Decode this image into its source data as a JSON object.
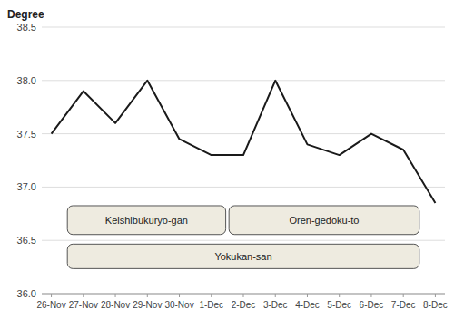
{
  "chart_data": {
    "type": "line",
    "ylabel": "Degree",
    "categories": [
      "26-Nov",
      "27-Nov",
      "28-Nov",
      "29-Nov",
      "30-Nov",
      "1-Dec",
      "2-Dec",
      "3-Dec",
      "4-Dec",
      "5-Dec",
      "6-Dec",
      "7-Dec",
      "8-Dec"
    ],
    "values": [
      37.5,
      37.9,
      37.6,
      38.0,
      37.45,
      37.3,
      37.3,
      38.0,
      37.4,
      37.3,
      37.5,
      37.35,
      36.85
    ],
    "color": "#1a1a1a",
    "ylim": [
      36.0,
      38.5
    ],
    "yticks": [
      {
        "value": 36.0,
        "label": "36.0"
      },
      {
        "value": 36.5,
        "label": "36.5"
      },
      {
        "value": 37.0,
        "label": "37.0"
      },
      {
        "value": 37.5,
        "label": "37.5"
      },
      {
        "value": 38.0,
        "label": "38.0"
      },
      {
        "value": 38.5,
        "label": "38.5"
      }
    ],
    "grid": true,
    "annotations": [
      {
        "text": "Keishibukuryo-gan",
        "x": [
          0.5,
          5.45
        ],
        "y": 36.69,
        "height": 0.27
      },
      {
        "text": "Oren-gedoku-to",
        "x": [
          5.55,
          11.5
        ],
        "y": 36.69,
        "height": 0.27
      },
      {
        "text": "Yokukan-san",
        "x": [
          0.5,
          11.5
        ],
        "y": 36.35,
        "height": 0.23
      }
    ]
  }
}
